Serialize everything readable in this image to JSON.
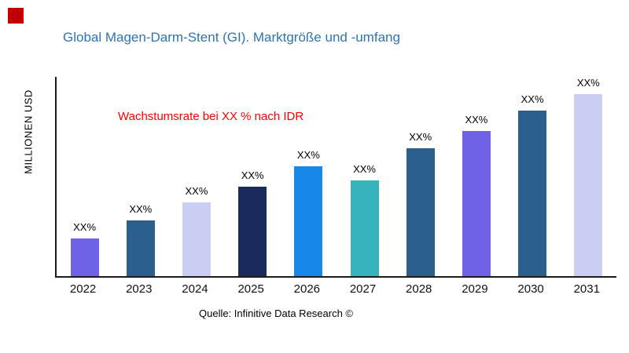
{
  "page": {
    "title": "Global Magen-Darm-Stent (GI). Marktgröße und -umfang",
    "annotation": "Wachstumsrate bei XX % nach IDR",
    "source": "Quelle: Infinitive Data Research ©",
    "ylabel": "MILLIONEN USD"
  },
  "colors": {
    "title": "#2E74B5",
    "annotation": "#FE0000",
    "corner_square": "#C00000",
    "axis": "#1a1a1a"
  },
  "chart_data": {
    "type": "bar",
    "title": "Global Magen-Darm-Stent (GI). Marktgröße und -umfang",
    "xlabel": "",
    "ylabel": "MILLIONEN USD",
    "categories": [
      "2022",
      "2023",
      "2024",
      "2025",
      "2026",
      "2027",
      "2028",
      "2029",
      "2030",
      "2031"
    ],
    "values": [
      19,
      28,
      37,
      45,
      55,
      48,
      64,
      73,
      83,
      92
    ],
    "value_labels": [
      "XX%",
      "XX%",
      "XX%",
      "XX%",
      "XX%",
      "XX%",
      "XX%",
      "XX%",
      "XX%",
      "XX%"
    ],
    "bar_colors": [
      "#6E63E7",
      "#2B5F8E",
      "#C9CEF2",
      "#1B2A5C",
      "#1787E8",
      "#36B3BC",
      "#2B5F8E",
      "#6E63E7",
      "#2B5F8E",
      "#C9CEF2"
    ],
    "ylim": [
      0,
      100
    ],
    "grid": false,
    "legend": "none",
    "annotation": "Wachstumsrate bei XX % nach IDR",
    "source": "Quelle: Infinitive Data Research ©"
  }
}
